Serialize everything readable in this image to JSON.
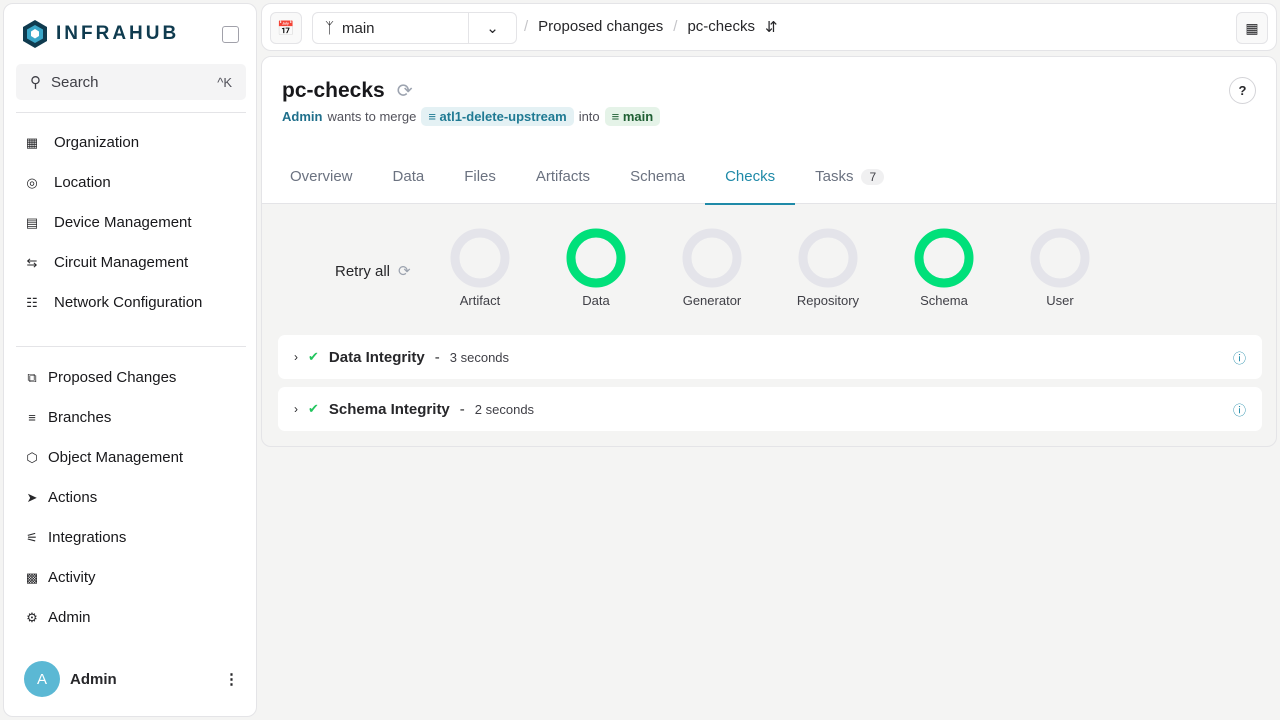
{
  "app": {
    "name": "INFRAHUB"
  },
  "search": {
    "label": "Search",
    "shortcut": "^K"
  },
  "sidebar": {
    "top_items": [
      {
        "label": "Organization",
        "icon": "building-icon"
      },
      {
        "label": "Location",
        "icon": "map-pin-icon"
      },
      {
        "label": "Device Management",
        "icon": "server-icon"
      },
      {
        "label": "Circuit Management",
        "icon": "circuit-icon"
      },
      {
        "label": "Network Configuration",
        "icon": "network-icon"
      }
    ],
    "bottom_items": [
      {
        "label": "Proposed Changes",
        "icon": "proposed-changes-icon"
      },
      {
        "label": "Branches",
        "icon": "layers-icon"
      },
      {
        "label": "Object Management",
        "icon": "cube-icon"
      },
      {
        "label": "Actions",
        "icon": "rocket-icon"
      },
      {
        "label": "Integrations",
        "icon": "plug-icon"
      },
      {
        "label": "Activity",
        "icon": "chart-icon"
      },
      {
        "label": "Admin",
        "icon": "gear-icon"
      }
    ]
  },
  "user": {
    "initial": "A",
    "name": "Admin"
  },
  "topbar": {
    "branch": "main",
    "breadcrumb": [
      "Proposed changes",
      "pc-checks"
    ]
  },
  "pc": {
    "title": "pc-checks",
    "author": "Admin",
    "wants": "wants to merge",
    "source": "atl1-delete-upstream",
    "into": "into",
    "target": "main",
    "help": "?"
  },
  "tabs": [
    {
      "label": "Overview"
    },
    {
      "label": "Data"
    },
    {
      "label": "Files"
    },
    {
      "label": "Artifacts"
    },
    {
      "label": "Schema"
    },
    {
      "label": "Checks",
      "active": true
    },
    {
      "label": "Tasks",
      "count": "7"
    }
  ],
  "checks": {
    "retry_label": "Retry all",
    "summary": [
      {
        "label": "Artifact",
        "success_fraction": 0
      },
      {
        "label": "Data",
        "success_fraction": 1
      },
      {
        "label": "Generator",
        "success_fraction": 0
      },
      {
        "label": "Repository",
        "success_fraction": 0
      },
      {
        "label": "Schema",
        "success_fraction": 1
      },
      {
        "label": "User",
        "success_fraction": 0
      }
    ],
    "items": [
      {
        "name": "Data Integrity",
        "duration": "3 seconds",
        "status": "success"
      },
      {
        "name": "Schema Integrity",
        "duration": "2 seconds",
        "status": "success"
      }
    ]
  },
  "colors": {
    "accent": "#1f8aa8",
    "success": "#00e07a",
    "empty": "#e4e4ea"
  }
}
